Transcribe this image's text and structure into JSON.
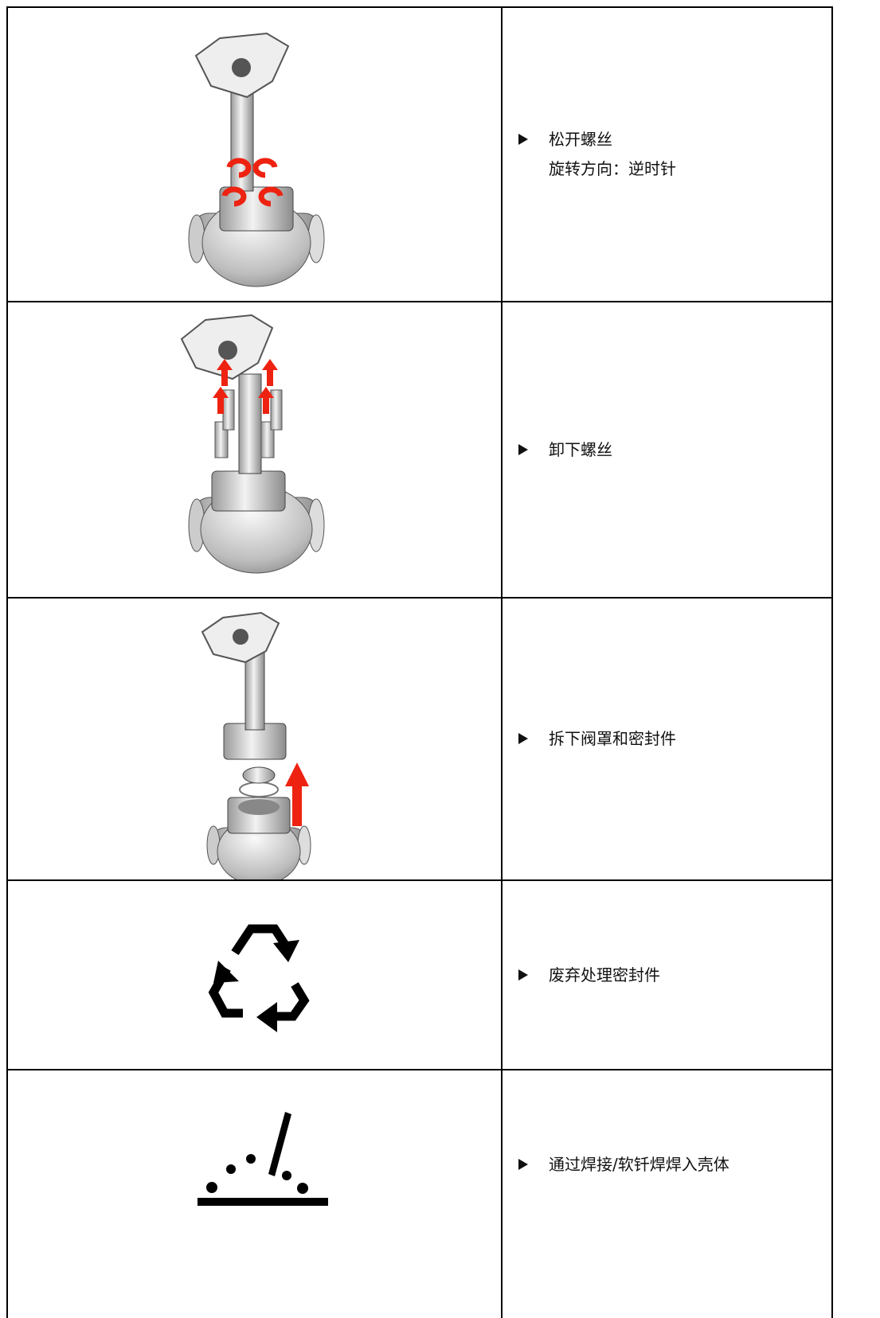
{
  "table": {
    "rows": [
      {
        "lines": [
          "松开螺丝",
          "旋转方向：逆时针"
        ]
      },
      {
        "lines": [
          "卸下螺丝"
        ]
      },
      {
        "lines": [
          "拆下阀罩和密封件"
        ]
      },
      {
        "lines": [
          "废弃处理密封件"
        ]
      },
      {
        "lines": [
          "通过焊接/软钎焊焊入壳体"
        ]
      }
    ]
  }
}
